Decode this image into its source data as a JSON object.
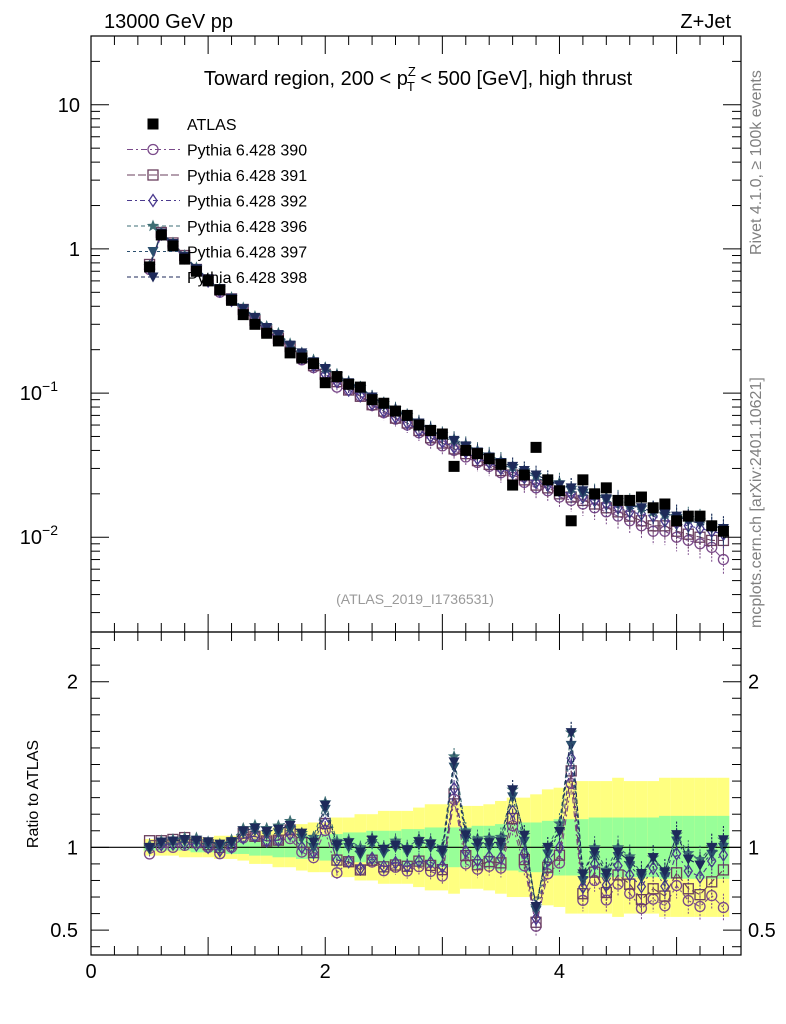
{
  "header": {
    "energy_label": "13000 GeV pp",
    "process_label": "Z+Jet"
  },
  "side_labels": {
    "rivet": "Rivet 4.1.0, ≥ 100k events",
    "mcplots": "mcplots.cern.ch [arXiv:2401.10621]"
  },
  "ref_label": "(ATLAS_2019_I1736531)",
  "chart_data": [
    {
      "type": "scatter",
      "panel": "main",
      "title": "Toward region, 200 < p_T^Z < 500 [GeV], high thrust",
      "title_parts": {
        "before": "Toward region, 200 < p",
        "sup": "Z",
        "sub": "T",
        "after": " < 500 [GeV], high thrust"
      },
      "xlabel": "",
      "ylabel": "",
      "yscale": "log",
      "xlim": [
        0,
        5.55
      ],
      "ylim": [
        0.0022,
        30
      ],
      "y_ticks": [
        {
          "value": 10,
          "label": "10"
        },
        {
          "value": 1,
          "label": "1"
        },
        {
          "value": 0.1,
          "label": "10",
          "exp": "−1"
        },
        {
          "value": 0.01,
          "label": "10",
          "exp": "−2"
        }
      ],
      "x_ticks": [
        0,
        2,
        4
      ],
      "x": [
        0.5,
        0.6,
        0.7,
        0.8,
        0.9,
        1.0,
        1.1,
        1.2,
        1.3,
        1.4,
        1.5,
        1.6,
        1.7,
        1.8,
        1.9,
        2.0,
        2.1,
        2.2,
        2.3,
        2.4,
        2.5,
        2.6,
        2.7,
        2.8,
        2.9,
        3.0,
        3.1,
        3.2,
        3.3,
        3.4,
        3.5,
        3.6,
        3.7,
        3.8,
        3.9,
        4.0,
        4.1,
        4.2,
        4.3,
        4.4,
        4.5,
        4.6,
        4.7,
        4.8,
        4.9,
        5.0,
        5.1,
        5.2,
        5.3,
        5.4
      ],
      "series": [
        {
          "name": "ATLAS",
          "marker": "square-filled",
          "color": "#000000",
          "dash": "",
          "values": [
            0.75,
            1.25,
            1.05,
            0.85,
            0.7,
            0.6,
            0.52,
            0.44,
            0.35,
            0.3,
            0.26,
            0.23,
            0.19,
            0.175,
            0.16,
            0.118,
            0.13,
            0.115,
            0.11,
            0.09,
            0.085,
            0.075,
            0.07,
            0.06,
            0.055,
            0.052,
            0.031,
            0.04,
            0.038,
            0.035,
            0.032,
            0.023,
            0.027,
            0.042,
            0.025,
            0.021,
            0.013,
            0.025,
            0.02,
            0.022,
            0.018,
            0.018,
            0.019,
            0.016,
            0.017,
            0.013,
            0.014,
            0.014,
            0.012,
            0.011
          ]
        },
        {
          "name": "Pythia 6.428 390",
          "marker": "circle-open",
          "color": "#7a4a8a",
          "dash": "6 3 2 3",
          "values": [
            0.72,
            1.25,
            1.05,
            0.86,
            0.72,
            0.6,
            0.5,
            0.44,
            0.37,
            0.32,
            0.27,
            0.24,
            0.2,
            0.17,
            0.15,
            0.13,
            0.11,
            0.105,
            0.095,
            0.082,
            0.073,
            0.066,
            0.06,
            0.053,
            0.047,
            0.043,
            0.04,
            0.036,
            0.033,
            0.031,
            0.028,
            0.026,
            0.024,
            0.022,
            0.021,
            0.019,
            0.018,
            0.017,
            0.016,
            0.015,
            0.014,
            0.013,
            0.012,
            0.011,
            0.011,
            0.01,
            0.0095,
            0.009,
            0.0085,
            0.007
          ]
        },
        {
          "name": "Pythia 6.428 391",
          "marker": "square-open",
          "color": "#6a3f5e",
          "dash": "8 3",
          "values": [
            0.78,
            1.3,
            1.1,
            0.9,
            0.72,
            0.61,
            0.52,
            0.45,
            0.38,
            0.32,
            0.27,
            0.24,
            0.21,
            0.18,
            0.155,
            0.135,
            0.12,
            0.105,
            0.095,
            0.083,
            0.075,
            0.067,
            0.062,
            0.055,
            0.049,
            0.045,
            0.041,
            0.038,
            0.034,
            0.032,
            0.029,
            0.027,
            0.025,
            0.023,
            0.022,
            0.02,
            0.019,
            0.018,
            0.017,
            0.016,
            0.015,
            0.014,
            0.013,
            0.012,
            0.012,
            0.011,
            0.0105,
            0.01,
            0.0095,
            0.0095
          ]
        },
        {
          "name": "Pythia 6.428 392",
          "marker": "diamond-open",
          "color": "#4b3a8e",
          "dash": "5 3 2 3",
          "values": [
            0.75,
            1.27,
            1.07,
            0.87,
            0.71,
            0.6,
            0.51,
            0.44,
            0.37,
            0.32,
            0.27,
            0.24,
            0.205,
            0.175,
            0.155,
            0.135,
            0.12,
            0.105,
            0.096,
            0.084,
            0.075,
            0.068,
            0.062,
            0.055,
            0.05,
            0.046,
            0.042,
            0.039,
            0.035,
            0.033,
            0.03,
            0.028,
            0.026,
            0.024,
            0.023,
            0.021,
            0.02,
            0.019,
            0.018,
            0.017,
            0.016,
            0.015,
            0.0145,
            0.014,
            0.013,
            0.0125,
            0.012,
            0.0115,
            0.011,
            0.0105
          ]
        },
        {
          "name": "Pythia 6.428 396",
          "marker": "star",
          "color": "#3e6e74",
          "dash": "4 3",
          "values": [
            0.76,
            1.3,
            1.1,
            0.9,
            0.74,
            0.62,
            0.53,
            0.46,
            0.39,
            0.34,
            0.29,
            0.26,
            0.22,
            0.19,
            0.17,
            0.15,
            0.135,
            0.12,
            0.11,
            0.095,
            0.085,
            0.078,
            0.07,
            0.063,
            0.057,
            0.052,
            0.048,
            0.044,
            0.04,
            0.037,
            0.034,
            0.031,
            0.029,
            0.027,
            0.025,
            0.024,
            0.022,
            0.021,
            0.02,
            0.019,
            0.018,
            0.017,
            0.016,
            0.015,
            0.0145,
            0.014,
            0.0135,
            0.013,
            0.012,
            0.0115
          ]
        },
        {
          "name": "Pythia 6.428 397",
          "marker": "triangle-down-filled",
          "color": "#2b4f6e",
          "dash": "3 3",
          "values": [
            0.74,
            1.28,
            1.08,
            0.88,
            0.72,
            0.61,
            0.52,
            0.45,
            0.38,
            0.33,
            0.28,
            0.25,
            0.21,
            0.185,
            0.16,
            0.145,
            0.13,
            0.115,
            0.105,
            0.092,
            0.082,
            0.075,
            0.068,
            0.061,
            0.055,
            0.05,
            0.046,
            0.042,
            0.038,
            0.035,
            0.032,
            0.03,
            0.028,
            0.026,
            0.024,
            0.023,
            0.021,
            0.02,
            0.019,
            0.018,
            0.017,
            0.016,
            0.0155,
            0.015,
            0.014,
            0.0135,
            0.013,
            0.0125,
            0.0115,
            0.011
          ]
        },
        {
          "name": "Pythia 6.428 398",
          "marker": "triangle-down-filled",
          "color": "#1e2a5a",
          "dash": "4 3",
          "values": [
            0.75,
            1.29,
            1.09,
            0.89,
            0.73,
            0.62,
            0.53,
            0.455,
            0.385,
            0.335,
            0.285,
            0.255,
            0.215,
            0.19,
            0.165,
            0.148,
            0.132,
            0.118,
            0.107,
            0.094,
            0.084,
            0.076,
            0.069,
            0.062,
            0.056,
            0.051,
            0.047,
            0.043,
            0.039,
            0.036,
            0.033,
            0.031,
            0.029,
            0.027,
            0.025,
            0.023,
            0.022,
            0.021,
            0.0195,
            0.0185,
            0.0175,
            0.0165,
            0.016,
            0.015,
            0.0145,
            0.014,
            0.013,
            0.0125,
            0.012,
            0.0115
          ]
        }
      ]
    },
    {
      "type": "scatter",
      "panel": "ratio",
      "xlabel": "",
      "ylabel": "Ratio to ATLAS",
      "xlim": [
        0,
        5.55
      ],
      "ylim": [
        0.35,
        2.3
      ],
      "y_ticks": [
        0.5,
        1,
        2
      ],
      "x_ticks": [
        0,
        2,
        4
      ],
      "x": [
        0.5,
        0.6,
        0.7,
        0.8,
        0.9,
        1.0,
        1.1,
        1.2,
        1.3,
        1.4,
        1.5,
        1.6,
        1.7,
        1.8,
        1.9,
        2.0,
        2.1,
        2.2,
        2.3,
        2.4,
        2.5,
        2.6,
        2.7,
        2.8,
        2.9,
        3.0,
        3.1,
        3.2,
        3.3,
        3.4,
        3.5,
        3.6,
        3.7,
        3.8,
        3.9,
        4.0,
        4.1,
        4.2,
        4.3,
        4.4,
        4.5,
        4.6,
        4.7,
        4.8,
        4.9,
        5.0,
        5.1,
        5.2,
        5.3,
        5.4
      ],
      "band_outer_half_width": [
        0.05,
        0.05,
        0.05,
        0.06,
        0.06,
        0.06,
        0.07,
        0.07,
        0.08,
        0.1,
        0.1,
        0.12,
        0.12,
        0.14,
        0.15,
        0.15,
        0.18,
        0.18,
        0.2,
        0.2,
        0.22,
        0.22,
        0.22,
        0.24,
        0.26,
        0.26,
        0.28,
        0.25,
        0.25,
        0.26,
        0.28,
        0.3,
        0.3,
        0.32,
        0.35,
        0.36,
        0.4,
        0.4,
        0.4,
        0.4,
        0.42,
        0.4,
        0.4,
        0.4,
        0.42,
        0.42,
        0.42,
        0.42,
        0.42,
        0.42
      ],
      "band_inner_half_width": [
        0.02,
        0.02,
        0.02,
        0.02,
        0.03,
        0.03,
        0.03,
        0.04,
        0.04,
        0.05,
        0.05,
        0.06,
        0.06,
        0.07,
        0.07,
        0.08,
        0.08,
        0.09,
        0.09,
        0.1,
        0.1,
        0.1,
        0.11,
        0.11,
        0.12,
        0.12,
        0.12,
        0.12,
        0.13,
        0.13,
        0.14,
        0.14,
        0.15,
        0.15,
        0.16,
        0.17,
        0.17,
        0.17,
        0.18,
        0.18,
        0.18,
        0.18,
        0.18,
        0.18,
        0.19,
        0.19,
        0.19,
        0.19,
        0.19,
        0.19
      ],
      "band_colors": {
        "outer": "#ffff80",
        "inner": "#98ff98"
      },
      "series_ratio_source": "main series divided by ATLAS"
    }
  ]
}
